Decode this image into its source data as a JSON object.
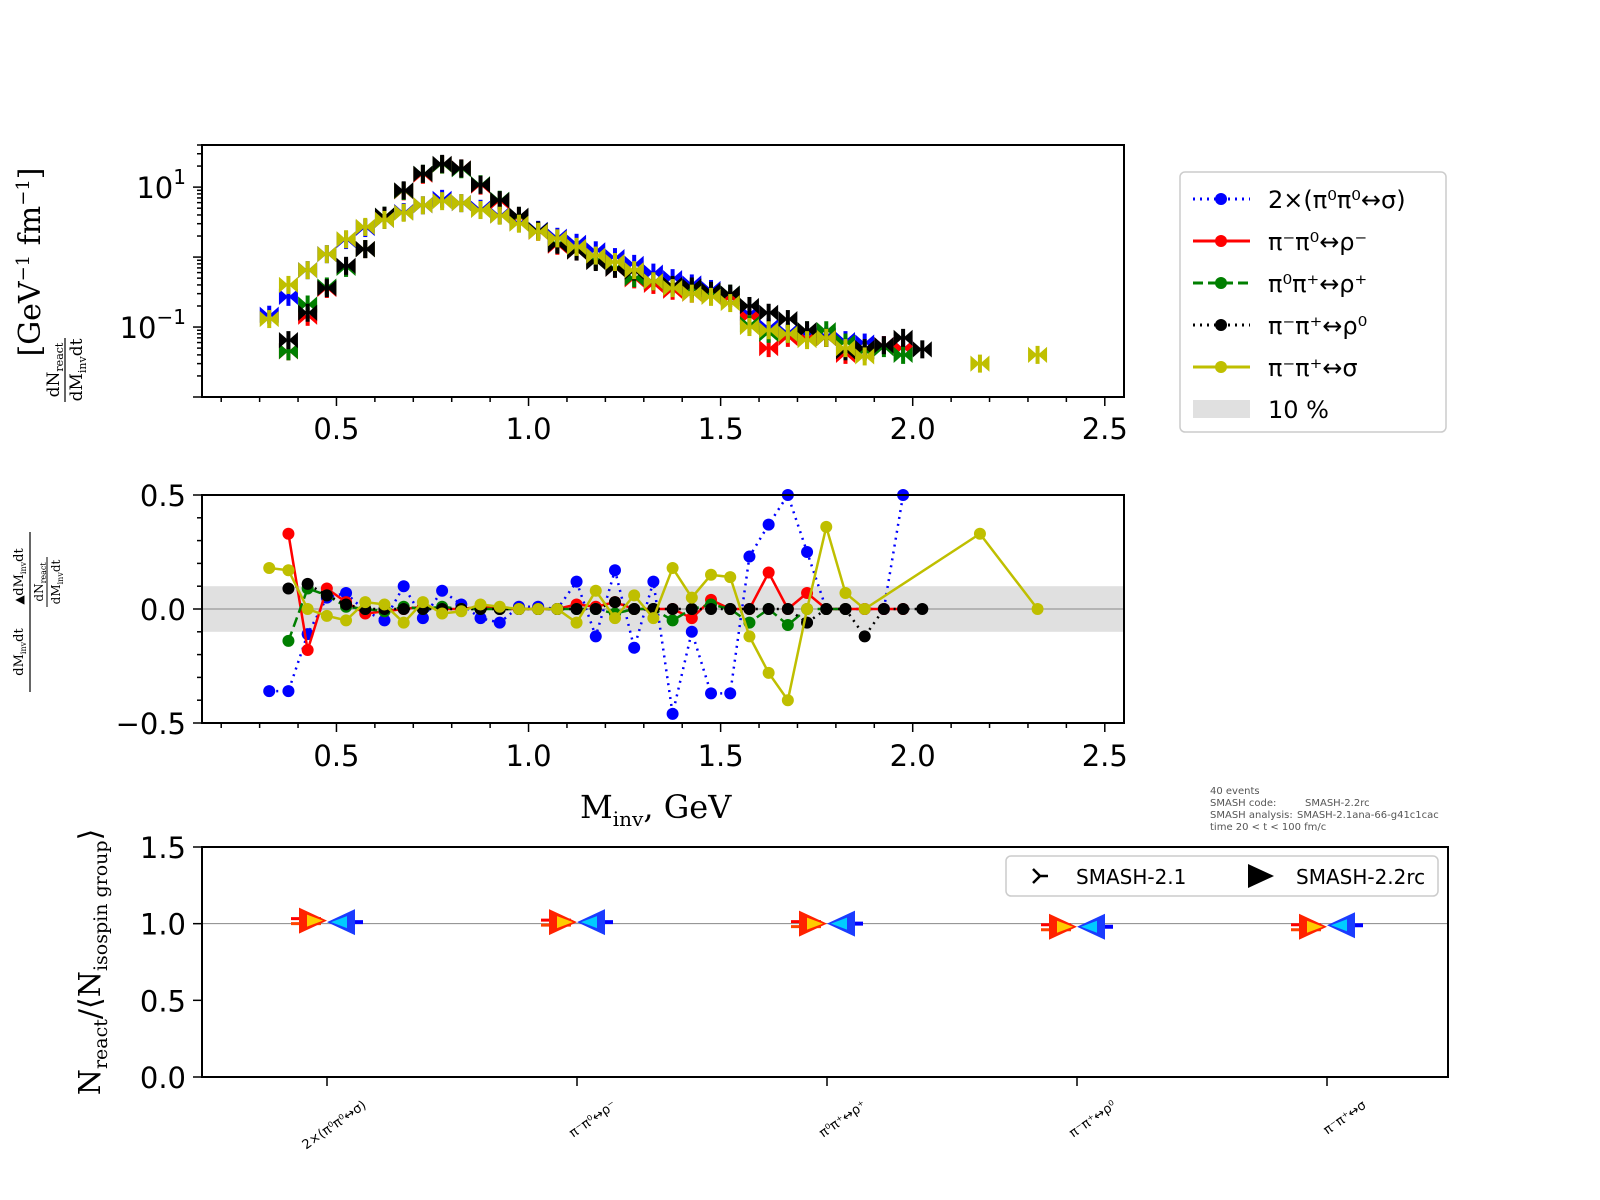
{
  "info": {
    "events": "40 events",
    "code_label": "SMASH code:",
    "code_value": "SMASH-2.2rc",
    "analysis_label": "SMASH analysis:",
    "analysis_value": "SMASH-2.1ana-66-g41c1cac",
    "time": "time 20 < t < 100 fm/c"
  },
  "colors": {
    "blue": "#0000ff",
    "red": "#ff0000",
    "green": "#007f00",
    "black": "#000000",
    "olive": "#bfbf00",
    "band": "#e0e0e0"
  },
  "chart_data": [
    {
      "type": "scatter",
      "panel": "top",
      "yscale": "log",
      "ylabel": "dN_react / dM_inv dt [GeV^-1 fm^-1]",
      "xlim": [
        0.15,
        2.55
      ],
      "ylim": [
        0.01,
        40
      ],
      "x_ticks": [
        "0.5",
        "1.0",
        "1.5",
        "2.0",
        "2.5"
      ],
      "y_ticks": [
        {
          "base": "10",
          "exp": "1",
          "value": 10
        },
        {
          "base": "10",
          "exp": "−1",
          "value": 0.1
        }
      ],
      "legend": {
        "position": "outside right",
        "entries": [
          {
            "label": "2×(π⁰π⁰↔σ)",
            "color": "#0000ff",
            "style": "dotted"
          },
          {
            "label": "π⁻π⁰↔ρ⁻",
            "color": "#ff0000",
            "style": "solid"
          },
          {
            "label": "π⁰π⁺↔ρ⁺",
            "color": "#007f00",
            "style": "dashed"
          },
          {
            "label": "π⁻π⁺↔ρ⁰",
            "color": "#000000",
            "style": "dotted"
          },
          {
            "label": "π⁻π⁺↔σ",
            "color": "#bfbf00",
            "style": "solid"
          },
          {
            "label": "10 %",
            "color": "#e0e0e0",
            "style": "band"
          }
        ]
      },
      "series": [
        {
          "color": "#0000ff",
          "x": [
            0.325,
            0.375,
            0.425,
            0.475,
            0.525,
            0.575,
            0.625,
            0.675,
            0.725,
            0.775,
            0.825,
            0.875,
            0.925,
            0.975,
            1.025,
            1.075,
            1.125,
            1.175,
            1.225,
            1.275,
            1.325,
            1.375,
            1.425,
            1.475,
            1.525,
            1.575,
            1.625,
            1.675,
            1.725,
            1.775,
            1.825,
            1.875,
            1.925,
            1.975
          ],
          "y": [
            0.15,
            0.27,
            0.65,
            1.1,
            1.75,
            2.6,
            3.4,
            4.4,
            5.5,
            6.8,
            5.9,
            4.9,
            4.0,
            3.1,
            2.45,
            1.95,
            1.6,
            1.25,
            1.0,
            0.8,
            0.6,
            0.5,
            0.42,
            0.35,
            0.28,
            0.16,
            0.1,
            0.085,
            0.08,
            0.075,
            0.065,
            0.06,
            0.055,
            0.05
          ]
        },
        {
          "color": "#ff0000",
          "x": [
            0.375,
            0.425,
            0.475,
            0.525,
            0.575,
            0.625,
            0.675,
            0.725,
            0.775,
            0.825,
            0.875,
            0.925,
            0.975,
            1.025,
            1.075,
            1.125,
            1.175,
            1.225,
            1.275,
            1.325,
            1.375,
            1.425,
            1.475,
            1.525,
            1.575,
            1.625,
            1.675,
            1.725,
            1.775,
            1.825,
            1.875,
            1.925,
            1.975
          ],
          "y": [
            0.045,
            0.14,
            0.35,
            0.72,
            1.3,
            3.8,
            8.7,
            15,
            21,
            18.5,
            10.5,
            6.2,
            3.7,
            2.3,
            1.45,
            1.2,
            0.88,
            0.68,
            0.48,
            0.4,
            0.33,
            0.3,
            0.28,
            0.26,
            0.14,
            0.05,
            0.07,
            0.07,
            0.07,
            0.04,
            0.045,
            0.055,
            0.05
          ]
        },
        {
          "color": "#007f00",
          "x": [
            0.375,
            0.425,
            0.475,
            0.525,
            0.575,
            0.625,
            0.675,
            0.725,
            0.775,
            0.825,
            0.875,
            0.925,
            0.975,
            1.025,
            1.075,
            1.125,
            1.175,
            1.225,
            1.275,
            1.325,
            1.375,
            1.425,
            1.475,
            1.525,
            1.575,
            1.625,
            1.675,
            1.725,
            1.775,
            1.825,
            1.875,
            1.925,
            1.975
          ],
          "y": [
            0.045,
            0.21,
            0.38,
            0.7,
            1.3,
            3.9,
            8.8,
            15.5,
            21,
            18,
            11,
            6.6,
            3.8,
            2.4,
            1.55,
            1.3,
            0.9,
            0.7,
            0.5,
            0.45,
            0.38,
            0.35,
            0.3,
            0.3,
            0.11,
            0.08,
            0.08,
            0.09,
            0.09,
            0.06,
            0.045,
            0.05,
            0.04
          ]
        },
        {
          "color": "#000000",
          "x": [
            0.375,
            0.425,
            0.475,
            0.525,
            0.575,
            0.625,
            0.675,
            0.725,
            0.775,
            0.825,
            0.875,
            0.925,
            0.975,
            1.025,
            1.075,
            1.125,
            1.175,
            1.225,
            1.275,
            1.325,
            1.375,
            1.425,
            1.475,
            1.525,
            1.575,
            1.625,
            1.675,
            1.725,
            1.775,
            1.825,
            1.875,
            1.925,
            1.975,
            2.025
          ],
          "y": [
            0.065,
            0.16,
            0.36,
            0.75,
            1.3,
            3.9,
            9.0,
            15.5,
            21.5,
            18.5,
            10.8,
            6.5,
            3.9,
            2.4,
            1.5,
            1.2,
            0.85,
            0.68,
            0.62,
            0.45,
            0.4,
            0.38,
            0.33,
            0.3,
            0.2,
            0.16,
            0.13,
            0.09,
            0.07,
            0.045,
            0.05,
            0.055,
            0.07,
            0.048
          ]
        },
        {
          "color": "#bfbf00",
          "x": [
            0.325,
            0.375,
            0.425,
            0.475,
            0.525,
            0.575,
            0.625,
            0.675,
            0.725,
            0.775,
            0.825,
            0.875,
            0.925,
            0.975,
            1.025,
            1.075,
            1.125,
            1.175,
            1.225,
            1.275,
            1.325,
            1.375,
            1.425,
            1.475,
            1.525,
            1.575,
            1.625,
            1.675,
            1.725,
            1.775,
            1.825,
            1.875,
            2.175,
            2.325
          ],
          "y": [
            0.13,
            0.4,
            0.65,
            1.1,
            1.8,
            2.7,
            3.4,
            4.3,
            5.5,
            6.3,
            5.9,
            4.7,
            3.9,
            3.0,
            2.3,
            1.85,
            1.4,
            1.05,
            0.85,
            0.65,
            0.45,
            0.36,
            0.3,
            0.27,
            0.22,
            0.1,
            0.09,
            0.08,
            0.065,
            0.07,
            0.05,
            0.038,
            0.03,
            0.04
          ]
        }
      ]
    },
    {
      "type": "line",
      "panel": "middle",
      "xlabel": "M_inv, GeV",
      "ylabel": "(dN_react/dM_inv dt − ▲dN_react/dM_inv dt) / dN_react/dM_inv dt",
      "xlim": [
        0.15,
        2.55
      ],
      "ylim": [
        -0.5,
        0.5
      ],
      "band": [
        -0.1,
        0.1
      ],
      "x_ticks": [
        "0.5",
        "1.0",
        "1.5",
        "2.0",
        "2.5"
      ],
      "y_ticks": [
        "0.5",
        "0.0",
        "−0.5"
      ],
      "series": [
        {
          "color": "#0000ff",
          "style": "dotted",
          "x": [
            0.325,
            0.375,
            0.425,
            0.475,
            0.525,
            0.575,
            0.625,
            0.675,
            0.725,
            0.775,
            0.825,
            0.875,
            0.925,
            0.975,
            1.025,
            1.075,
            1.125,
            1.175,
            1.225,
            1.275,
            1.325,
            1.375,
            1.425,
            1.475,
            1.525,
            1.575,
            1.625,
            1.675,
            1.725,
            1.775,
            1.825,
            1.875,
            1.925,
            1.975
          ],
          "y": [
            -0.36,
            -0.36,
            -0.11,
            0.05,
            0.07,
            -0.01,
            -0.05,
            0.1,
            -0.04,
            0.08,
            0.02,
            -0.04,
            -0.06,
            0.01,
            0.01,
            0.0,
            0.12,
            -0.12,
            0.17,
            -0.17,
            0.12,
            -0.46,
            -0.1,
            -0.37,
            -0.37,
            0.23,
            0.37,
            0.5,
            0.25,
            0.0,
            0.0,
            0.0,
            0.0,
            0.5
          ]
        },
        {
          "color": "#ff0000",
          "style": "solid",
          "x": [
            0.375,
            0.425,
            0.475,
            0.525,
            0.575,
            0.625,
            0.675,
            0.725,
            0.775,
            0.825,
            0.875,
            0.925,
            0.975,
            1.025,
            1.075,
            1.125,
            1.175,
            1.225,
            1.275,
            1.325,
            1.375,
            1.425,
            1.475,
            1.525,
            1.575,
            1.625,
            1.675,
            1.725,
            1.775,
            1.825,
            1.875,
            1.925,
            1.975
          ],
          "y": [
            0.33,
            -0.18,
            0.09,
            0.03,
            -0.02,
            -0.01,
            0.0,
            0.01,
            0.0,
            0.0,
            0.01,
            0.0,
            0.0,
            0.0,
            0.0,
            0.02,
            0.01,
            0.03,
            0.0,
            0.0,
            0.0,
            -0.04,
            0.04,
            0.0,
            0.0,
            0.16,
            0.0,
            0.07,
            0.0,
            0.0,
            0.0,
            0.0,
            0.0
          ]
        },
        {
          "color": "#007f00",
          "style": "dashed",
          "x": [
            0.375,
            0.425,
            0.475,
            0.525,
            0.575,
            0.625,
            0.675,
            0.725,
            0.775,
            0.825,
            0.875,
            0.925,
            0.975,
            1.025,
            1.075,
            1.125,
            1.175,
            1.225,
            1.275,
            1.325,
            1.375,
            1.425,
            1.475,
            1.525,
            1.575,
            1.625,
            1.675,
            1.725,
            1.775,
            1.825
          ],
          "y": [
            -0.14,
            0.09,
            0.06,
            0.01,
            0.0,
            -0.01,
            0.01,
            0.0,
            0.01,
            0.0,
            0.0,
            0.0,
            0.0,
            0.0,
            0.0,
            0.0,
            0.0,
            -0.02,
            0.0,
            0.0,
            -0.05,
            0.0,
            0.02,
            0.0,
            -0.06,
            0.0,
            -0.07,
            0.0,
            0.0,
            0.0
          ]
        },
        {
          "color": "#000000",
          "style": "dotted",
          "x": [
            0.375,
            0.425,
            0.475,
            0.525,
            0.575,
            0.625,
            0.675,
            0.725,
            0.775,
            0.825,
            0.875,
            0.925,
            0.975,
            1.025,
            1.075,
            1.125,
            1.175,
            1.225,
            1.275,
            1.325,
            1.375,
            1.425,
            1.475,
            1.525,
            1.575,
            1.625,
            1.675,
            1.725,
            1.775,
            1.825,
            1.875,
            1.925,
            1.975,
            2.025
          ],
          "y": [
            0.09,
            0.11,
            0.06,
            0.02,
            0.0,
            0.0,
            0.0,
            0.0,
            0.0,
            0.0,
            0.0,
            0.0,
            0.0,
            0.0,
            0.0,
            0.0,
            0.0,
            0.03,
            0.0,
            0.0,
            0.0,
            0.0,
            0.0,
            0.0,
            0.0,
            0.0,
            0.0,
            -0.06,
            0.0,
            0.0,
            -0.12,
            0.0,
            0.0,
            0.0
          ]
        },
        {
          "color": "#bfbf00",
          "style": "solid",
          "x": [
            0.325,
            0.375,
            0.425,
            0.475,
            0.525,
            0.575,
            0.625,
            0.675,
            0.725,
            0.775,
            0.825,
            0.875,
            0.925,
            0.975,
            1.025,
            1.075,
            1.125,
            1.175,
            1.225,
            1.275,
            1.325,
            1.375,
            1.425,
            1.475,
            1.525,
            1.575,
            1.625,
            1.675,
            1.725,
            1.775,
            1.825,
            1.875,
            2.175,
            2.325
          ],
          "y": [
            0.18,
            0.17,
            0.0,
            -0.03,
            -0.05,
            0.03,
            0.02,
            -0.06,
            0.03,
            -0.02,
            -0.01,
            0.02,
            0.01,
            0.0,
            0.0,
            0.0,
            -0.06,
            0.08,
            -0.04,
            0.06,
            -0.04,
            0.18,
            0.05,
            0.15,
            0.14,
            -0.12,
            -0.28,
            -0.4,
            0.0,
            0.36,
            0.07,
            0.0,
            0.33,
            0.0
          ]
        }
      ]
    },
    {
      "type": "scatter",
      "panel": "bottom",
      "ylabel": "N_react / ⟨N_isospin group⟩",
      "ylim": [
        0.0,
        1.5
      ],
      "y_ticks": [
        "1.5",
        "1.0",
        "0.5",
        "0.0"
      ],
      "categories": [
        "2×(π⁰π⁰↔σ)",
        "π⁻π⁰↔ρ⁻",
        "π⁰π⁺↔ρ⁺",
        "π⁻π⁺↔ρ⁰",
        "π⁻π⁺↔σ"
      ],
      "legend": {
        "position": "upper right",
        "entries": [
          {
            "label": "SMASH-2.1",
            "marker": "tri"
          },
          {
            "label": "SMASH-2.2rc",
            "marker": "triangle"
          }
        ]
      },
      "series": [
        {
          "name": "SMASH-2.1",
          "values": [
            1.02,
            1.01,
            1.0,
            0.98,
            0.98
          ]
        },
        {
          "name": "SMASH-2.2rc",
          "values": [
            1.01,
            1.01,
            1.0,
            0.98,
            0.99
          ]
        }
      ]
    }
  ]
}
